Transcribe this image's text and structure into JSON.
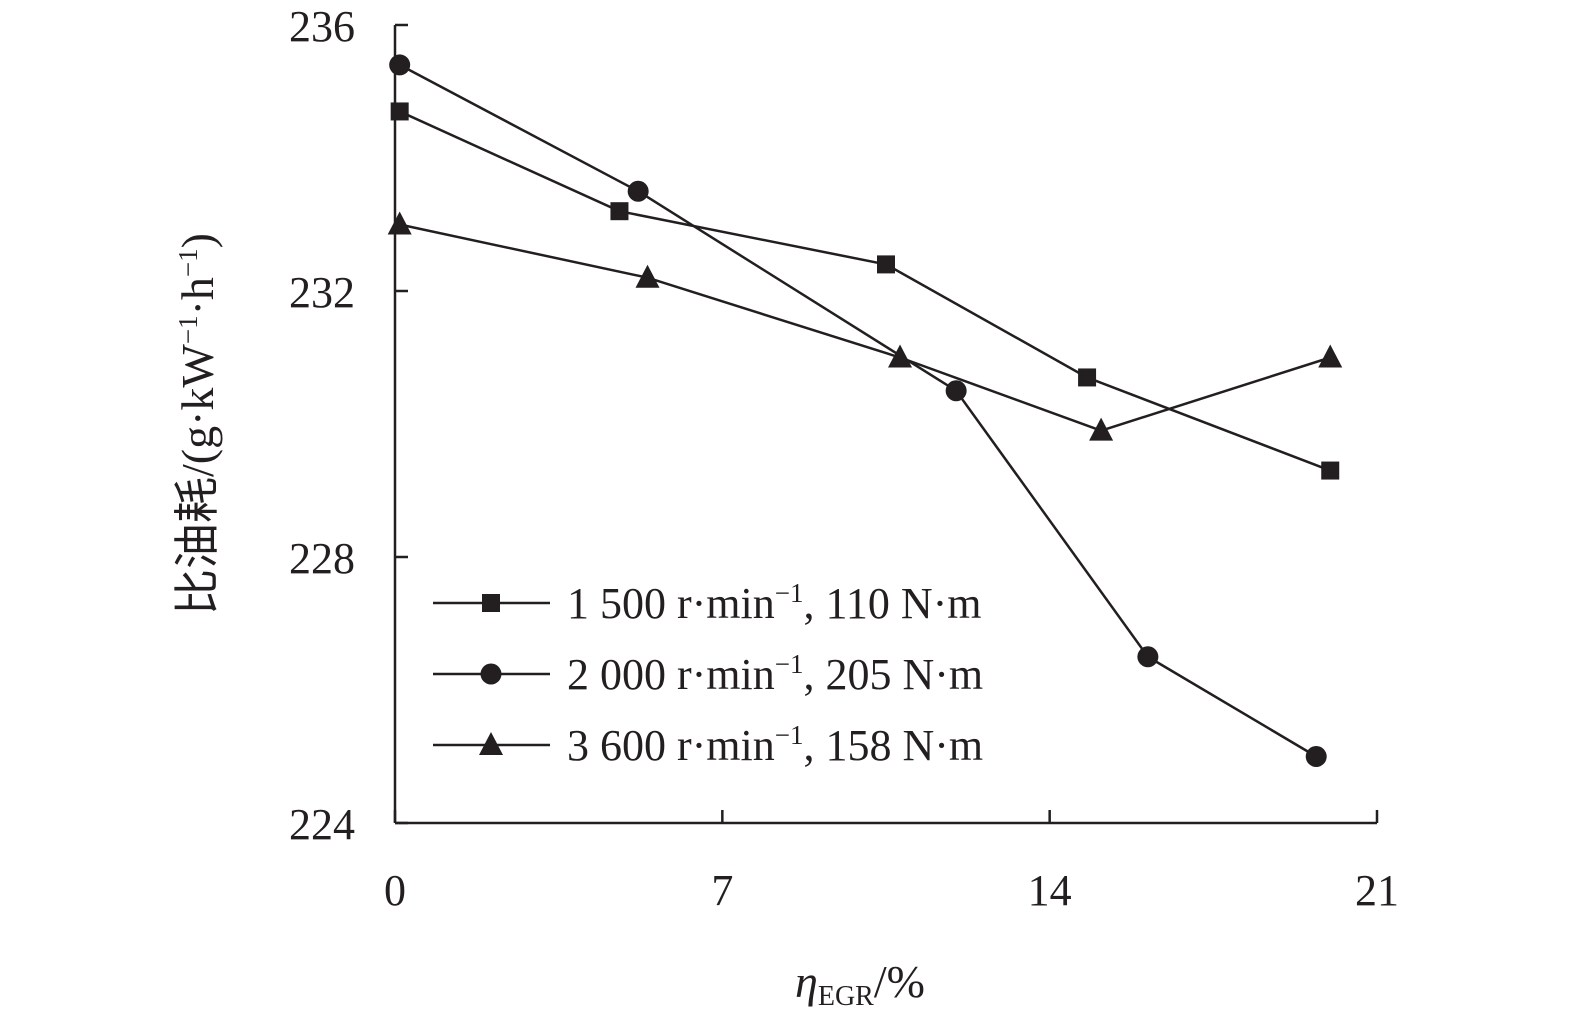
{
  "chart_data": {
    "type": "line",
    "title": "",
    "xlabel": {
      "symbol": "η",
      "subscript": "EGR",
      "unit": "/%"
    },
    "ylabel": {
      "prefix": "比油耗/(g·kW",
      "sup1": "−1",
      "middle": "·h",
      "sup2": "−1",
      "suffix": ")"
    },
    "xlim": [
      0,
      21
    ],
    "ylim": [
      224,
      236
    ],
    "x_ticks": [
      0,
      7,
      14,
      21
    ],
    "y_ticks": [
      224,
      228,
      232,
      236
    ],
    "x_tick_labels": [
      "0",
      "7",
      "14",
      "21"
    ],
    "y_tick_labels": [
      "224",
      "228",
      "232",
      "236"
    ],
    "grid": false,
    "legend_position": "lower-left",
    "series": [
      {
        "name": "1 500 r·min−1, 110 N·m",
        "label_prefix": "1 500 r·min",
        "label_sup": "−1",
        "label_suffix": ", 110 N·m",
        "marker": "square",
        "color": "#231f20",
        "x": [
          0.1,
          4.8,
          10.5,
          14.8,
          20.0
        ],
        "y": [
          234.7,
          233.2,
          232.4,
          230.7,
          229.3
        ]
      },
      {
        "name": "2 000 r·min−1, 205 N·m",
        "label_prefix": "2 000 r·min",
        "label_sup": "−1",
        "label_suffix": ", 205 N·m",
        "marker": "circle",
        "color": "#231f20",
        "x": [
          0.1,
          5.2,
          12.0,
          16.1,
          19.7
        ],
        "y": [
          235.4,
          233.5,
          230.5,
          226.5,
          225.0
        ]
      },
      {
        "name": "3 600 r·min−1, 158 N·m",
        "label_prefix": "3 600 r·min",
        "label_sup": "−1",
        "label_suffix": ", 158 N·m",
        "marker": "triangle",
        "color": "#231f20",
        "x": [
          0.1,
          5.4,
          10.8,
          15.1,
          20.0
        ],
        "y": [
          233.0,
          232.2,
          231.0,
          229.9,
          231.0
        ]
      }
    ]
  }
}
